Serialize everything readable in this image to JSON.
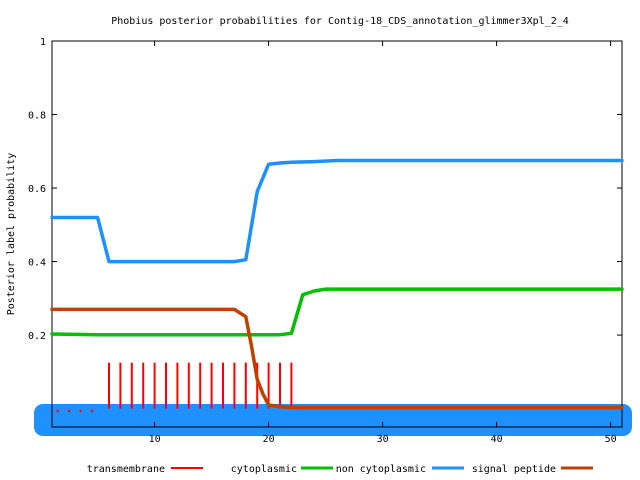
{
  "chart_data": {
    "type": "line",
    "title": "Phobius posterior probabilities for Contig-18_CDS_annotation_glimmer3Xpl_2_4",
    "xlabel": "",
    "ylabel": "Posterior label probability",
    "xlim": [
      1,
      51
    ],
    "ylim": [
      -0.05,
      1
    ],
    "x_ticks": [
      "10",
      "20",
      "30",
      "40",
      "50"
    ],
    "y_ticks": [
      "0.2",
      "0.4",
      "0.6",
      "0.8",
      "1"
    ],
    "legend_position": "bottom",
    "series": [
      {
        "name": "transmembrane",
        "color": "#ff0000",
        "style": "impulses",
        "x": [
          6,
          7,
          8,
          9,
          10,
          11,
          12,
          13,
          14,
          15,
          16,
          17,
          18,
          19,
          20,
          21,
          22
        ],
        "values": [
          0.125,
          0.125,
          0.125,
          0.125,
          0.125,
          0.125,
          0.125,
          0.125,
          0.125,
          0.125,
          0.125,
          0.125,
          0.125,
          0.125,
          0.125,
          0.125,
          0.125
        ]
      },
      {
        "name": "cytoplasmic",
        "color": "#00c000",
        "style": "line",
        "x": [
          1,
          5,
          17,
          18,
          19,
          20,
          21,
          22,
          23,
          24,
          25,
          26,
          51
        ],
        "values": [
          0.203,
          0.201,
          0.201,
          0.201,
          0.201,
          0.201,
          0.201,
          0.205,
          0.31,
          0.32,
          0.325,
          0.325,
          0.325
        ]
      },
      {
        "name": "non cytoplasmic",
        "color": "#1e90ff",
        "style": "line",
        "x": [
          1,
          5,
          6,
          17,
          18,
          19,
          20,
          21,
          22,
          24,
          26,
          51
        ],
        "values": [
          0.52,
          0.52,
          0.4,
          0.4,
          0.405,
          0.59,
          0.665,
          0.668,
          0.67,
          0.672,
          0.675,
          0.675
        ]
      },
      {
        "name": "signal peptide",
        "color": "#c04000",
        "style": "line",
        "x": [
          1,
          17,
          18,
          18.5,
          19,
          19.5,
          20,
          21,
          22,
          51
        ],
        "values": [
          0.27,
          0.27,
          0.25,
          0.17,
          0.08,
          0.04,
          0.01,
          0.005,
          0.003,
          0.003
        ]
      }
    ]
  }
}
